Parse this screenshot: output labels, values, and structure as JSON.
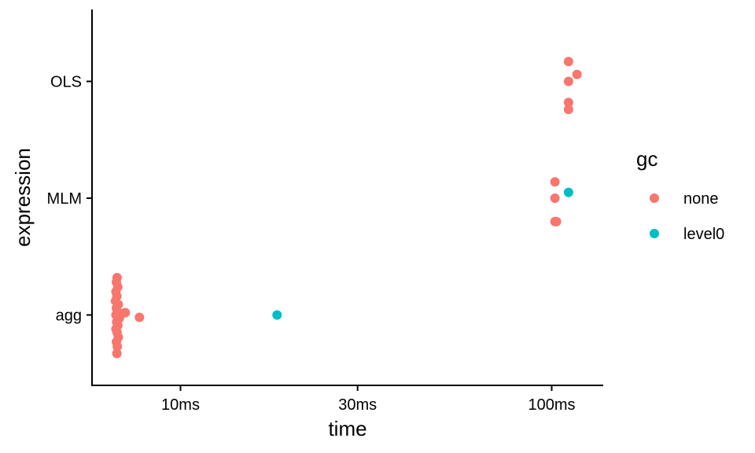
{
  "chart_data": {
    "type": "scatter",
    "xlabel": "time",
    "ylabel": "expression",
    "x_scale": "log10",
    "x_ticks": [
      {
        "value": 10,
        "label": "10ms"
      },
      {
        "value": 30,
        "label": "30ms"
      },
      {
        "value": 100,
        "label": "100ms"
      }
    ],
    "y_categories": [
      "agg",
      "MLM",
      "OLS"
    ],
    "legend": {
      "title": "gc",
      "position": "right",
      "entries": [
        {
          "label": "none",
          "color": "#F8766D"
        },
        {
          "label": "level0",
          "color": "#00BFC4"
        }
      ]
    },
    "series": [
      {
        "gc": "none",
        "color": "#F8766D",
        "points": [
          {
            "category": "OLS",
            "x": 111,
            "offset": 0.17
          },
          {
            "category": "OLS",
            "x": 117,
            "offset": 0.06
          },
          {
            "category": "OLS",
            "x": 111,
            "offset": 0.0
          },
          {
            "category": "OLS",
            "x": 111,
            "offset": -0.18
          },
          {
            "category": "OLS",
            "x": 111,
            "offset": -0.24
          },
          {
            "category": "MLM",
            "x": 102,
            "offset": 0.14
          },
          {
            "category": "MLM",
            "x": 102,
            "offset": 0.0
          },
          {
            "category": "MLM",
            "x": 102,
            "offset": -0.2
          },
          {
            "category": "MLM",
            "x": 103,
            "offset": -0.2
          },
          {
            "category": "agg",
            "x": 6.75,
            "offset": 0.32
          },
          {
            "category": "agg",
            "x": 6.72,
            "offset": 0.28
          },
          {
            "category": "agg",
            "x": 6.78,
            "offset": 0.24
          },
          {
            "category": "agg",
            "x": 6.7,
            "offset": 0.2
          },
          {
            "category": "agg",
            "x": 6.74,
            "offset": 0.16
          },
          {
            "category": "agg",
            "x": 6.68,
            "offset": 0.12
          },
          {
            "category": "agg",
            "x": 6.8,
            "offset": 0.09
          },
          {
            "category": "agg",
            "x": 6.72,
            "offset": 0.06
          },
          {
            "category": "agg",
            "x": 6.76,
            "offset": 0.03
          },
          {
            "category": "agg",
            "x": 7.1,
            "offset": 0.02
          },
          {
            "category": "agg",
            "x": 6.95,
            "offset": 0.01
          },
          {
            "category": "agg",
            "x": 7.75,
            "offset": -0.02
          },
          {
            "category": "agg",
            "x": 6.7,
            "offset": 0.0
          },
          {
            "category": "agg",
            "x": 6.84,
            "offset": -0.03
          },
          {
            "category": "agg",
            "x": 6.73,
            "offset": -0.06
          },
          {
            "category": "agg",
            "x": 6.78,
            "offset": -0.09
          },
          {
            "category": "agg",
            "x": 6.7,
            "offset": -0.12
          },
          {
            "category": "agg",
            "x": 6.75,
            "offset": -0.15
          },
          {
            "category": "agg",
            "x": 6.8,
            "offset": -0.19
          },
          {
            "category": "agg",
            "x": 6.72,
            "offset": -0.23
          },
          {
            "category": "agg",
            "x": 6.76,
            "offset": -0.27
          },
          {
            "category": "agg",
            "x": 6.74,
            "offset": -0.33
          }
        ]
      },
      {
        "gc": "level0",
        "color": "#00BFC4",
        "points": [
          {
            "category": "MLM",
            "x": 111,
            "offset": 0.05
          },
          {
            "category": "agg",
            "x": 18.2,
            "offset": 0.0
          }
        ]
      }
    ]
  }
}
